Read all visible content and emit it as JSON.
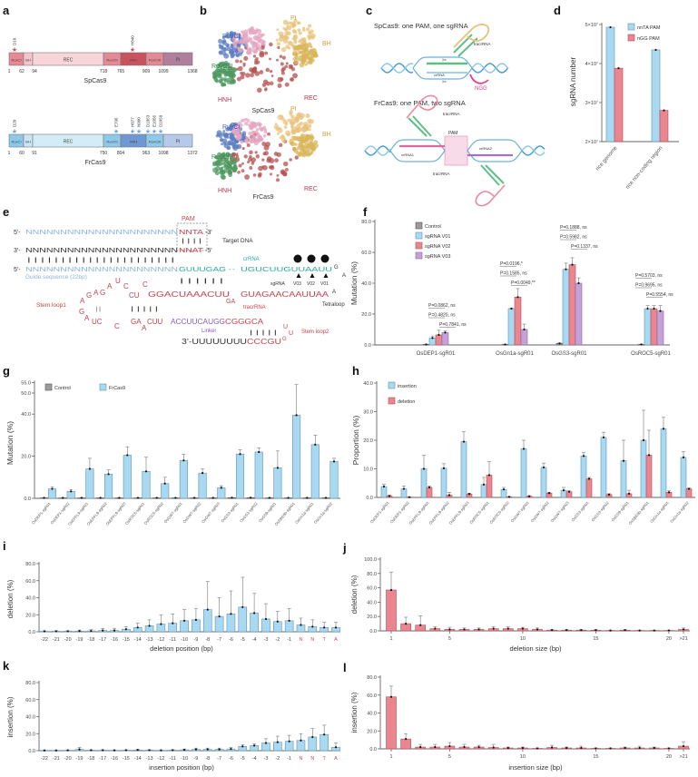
{
  "panel_letters": {
    "a": "a",
    "b": "b",
    "c": "c",
    "d": "d",
    "e": "e",
    "f": "f",
    "g": "g",
    "h": "h",
    "i": "i",
    "j": "j",
    "k": "k",
    "l": "l"
  },
  "colors": {
    "blue": "#a9d9f0",
    "blue_edge": "#5f93b2",
    "red": "#e9868f",
    "red_edge": "#b14f59",
    "purple": "#c4a2d8",
    "purple_edge": "#8d66a6",
    "grey": "#9c9c9c",
    "pam_red": "#d9444f",
    "teal": "#2aa9a0",
    "guide_blue": "#8ab4dc",
    "linker_purple": "#8a5db0"
  },
  "panel_a": {
    "proteins": [
      {
        "name": "SpCas9",
        "domains": [
          {
            "label": "RuvCI",
            "start": 1,
            "end": 62
          },
          {
            "label": "BH",
            "start": 62,
            "end": 94
          },
          {
            "label": "REC",
            "start": 94,
            "end": 718
          },
          {
            "label": "RuvCII",
            "start": 718,
            "end": 765
          },
          {
            "label": "HNH",
            "start": 765,
            "end": 909
          },
          {
            "label": "RuvCIII",
            "start": 909,
            "end": 1099
          },
          {
            "label": "PI",
            "start": 1099,
            "end": 1368
          }
        ],
        "positions": [
          "1",
          "62",
          "94",
          "718",
          "765",
          "909",
          "1099",
          "1368"
        ],
        "mutations": [
          "D10",
          "H840"
        ]
      },
      {
        "name": "FrCas9",
        "domains": [
          {
            "label": "RuvCI",
            "start": 1,
            "end": 60
          },
          {
            "label": "BH",
            "start": 60,
            "end": 91
          },
          {
            "label": "REC",
            "start": 91,
            "end": 750
          },
          {
            "label": "RuvCII",
            "start": 750,
            "end": 804
          },
          {
            "label": "HNH",
            "start": 804,
            "end": 963
          },
          {
            "label": "RuvCIII",
            "start": 963,
            "end": 1098
          },
          {
            "label": "PI",
            "start": 1098,
            "end": 1372
          }
        ],
        "positions": [
          "1",
          "60",
          "91",
          "750",
          "804",
          "963",
          "1098",
          "1372"
        ],
        "mutations": [
          "D20",
          "E796",
          "H877",
          "N900",
          "D1053",
          "E1056",
          "D1059"
        ]
      }
    ]
  },
  "panel_b": {
    "top": {
      "title": "SpCas9",
      "labels": [
        "RuvCI",
        "PI",
        "BH",
        "RuvCIII",
        "HNH",
        "REC"
      ]
    },
    "bottom": {
      "title": "FrCas9",
      "labels": [
        "RuvCI",
        "PI",
        "BH",
        "RuvCIII",
        "HNH",
        "REC"
      ]
    }
  },
  "panel_c": {
    "top_title": "SpCas9: one PAM, one sgRNA",
    "bottom_title": "FrCas9: one PAM, two sgRNA",
    "top_labels": {
      "tracrrna": "tracrRNA",
      "crrna": "crRNA",
      "pam": "NGG"
    },
    "bottom_labels": {
      "tracrrna_top": "tracrRNA",
      "tracrrna_bottom": "tracrRNA",
      "pam": "PAM",
      "crrna1": "crRNA1",
      "crrna2": "crRNA2"
    }
  },
  "panel_e": {
    "pam_label": "PAM",
    "target_dna_label": "Target DNA",
    "top_strand": {
      "prefix": "5'-",
      "seq": "NNNNNNNNNNNNNNNNNNNNNN",
      "pam": "NNTA",
      "suffix": "-3'"
    },
    "pam_pairs": "| | | |",
    "bottom_strand": {
      "prefix": "3'-",
      "seq": "NNNNNNNNNNNNNNNNNNNNNN",
      "pam": "NNAT",
      "suffix": "-5'"
    },
    "guide_pairs": "| | | | | | | | | | | | | | | | | | | | | |",
    "sgrna": {
      "prefix": "5'-",
      "guide": "NNNNNNNNNNNNNNNNNNNNNN",
      "repeat": "GUUUGAG",
      "gap": "- -",
      "anti_repeat": "UGUCUUGUUAAUU",
      "loop_g": "G"
    },
    "guide_label": "Guide sequence (22bp)",
    "crrna_label": "crRNA",
    "repeat_pairs": "| | | | | |",
    "sgrna_label": "sgRNA",
    "variants": [
      "V03",
      "V02",
      "V01"
    ],
    "tetraloop_letters": [
      "A",
      "A"
    ],
    "tetraloop_label": "Tetraloop",
    "tracr_seq_1": "GGACUAAACUU",
    "tracr_bulge": "GA",
    "tracr_seq_2": "GUAGAACAAUUAA",
    "tracrrna_label": "tracrRNA",
    "stem_loop1_label": "Stem loop1",
    "stem_loop1_letters": [
      "A",
      "G",
      "A",
      "G",
      "A",
      "U",
      "C",
      "CU",
      "C"
    ],
    "stem_loop1_pairs": [
      "| |",
      "| |  | | |"
    ],
    "lower_letters": [
      "G",
      "A",
      "UC",
      "C",
      "GA",
      "A",
      "CUU"
    ],
    "linker_seq": "ACCUUCAUGG",
    "lower_seq_2": "CGGGCA",
    "linker_label": "Linker",
    "stem_loop2_letters": [
      "U",
      "U"
    ],
    "stem_loop2_label": "Stem loop2",
    "stem_loop2_pairs": "| | | | |",
    "tail_prefix": "3'-UUUUUUUU",
    "tail_seq": "CCCGU",
    "tail_g": "G"
  },
  "chart_data": [
    {
      "id": "d",
      "type": "bar",
      "ylabel": "sgRNA number",
      "categories": [
        "rice genome",
        "rice non-coding region"
      ],
      "ylim": [
        20000000,
        50000000
      ],
      "ytick_values": [
        20000000,
        30000000,
        40000000,
        50000000
      ],
      "ytick_labels": [
        "2×10⁷",
        "3×10⁷",
        "4×10⁷",
        "5×10⁷"
      ],
      "legend": "top-right",
      "series": [
        {
          "name": "nnTA PAM",
          "color": "blue",
          "values": [
            49300000,
            43500000
          ]
        },
        {
          "name": "nGG PAM",
          "color": "red",
          "values": [
            38800000,
            28000000
          ]
        }
      ]
    },
    {
      "id": "f",
      "type": "bar",
      "ylabel": "Mutation (%)",
      "categories": [
        "OsDEP1-sgR01",
        "OsGn1a-sgR01",
        "OsGS3-sgR01",
        "OsROC5-sgR01"
      ],
      "ylim": [
        0,
        80
      ],
      "ytick_values": [
        0,
        20,
        40,
        60,
        80
      ],
      "ytick_labels": [
        "0.0",
        "20.0",
        "40.0",
        "60.0",
        "80.0"
      ],
      "legend": "top-left",
      "series": [
        {
          "name": "Control",
          "color": "grey",
          "values": [
            0.3,
            0.3,
            1.0,
            0.3
          ],
          "error": [
            0.5,
            0.5,
            1.3,
            0.5
          ]
        },
        {
          "name": "sgRNA V01",
          "color": "blue",
          "values": [
            4.5,
            23.5,
            49,
            23.5
          ],
          "error": [
            5.8,
            24,
            53,
            25.5
          ]
        },
        {
          "name": "sgRNA V02",
          "color": "red",
          "values": [
            6.5,
            31,
            52,
            23.5
          ],
          "error": [
            9.5,
            36.5,
            56.5,
            25.5
          ]
        },
        {
          "name": "sgRNA V03",
          "color": "purple",
          "values": [
            8,
            10,
            40,
            22
          ],
          "error": [
            9,
            13.5,
            43.5,
            25.5
          ]
        }
      ],
      "annotations": [
        [
          "P=0.0862, ns",
          "P=0.4820, ns",
          "P=0.7841, ns"
        ],
        [
          "P=0.0196,*",
          "P=0.1585, ns",
          "P=0.0049,**"
        ],
        [
          "P=0.1888, ns",
          "P=0.5982, ns",
          "P=0.1337, ns"
        ],
        [
          "P=0.5703, ns",
          "P=0.9695, ns",
          "P=0.5554, ns"
        ]
      ]
    },
    {
      "id": "g",
      "type": "bar",
      "ylabel": "Mutation (%)",
      "categories": [
        "OsDEP1-sgR01",
        "OsDEP1-sgR02",
        "OsEPFL9-sgR01",
        "OsEPFL9-sgR02",
        "OsEPFL9-sgR03",
        "OsROC5-sgR01",
        "OsROC5-sgR02",
        "OsGW7-sgR01",
        "OsGW7-sgR02",
        "OsGW7-sgR03",
        "OsGS3-sgR01",
        "OsGS3-sgR02",
        "OsGS9-sgR01",
        "OsSBEIIb-sgR01",
        "OsGn1a-sgR01",
        "OsGn1a-sgR02"
      ],
      "ylim": [
        0,
        55
      ],
      "ytick_values": [
        0,
        20,
        40,
        50,
        55
      ],
      "ytick_labels": [
        "0.0",
        "20.0",
        "40.0",
        "50.0",
        "55.0"
      ],
      "legend": "top",
      "series": [
        {
          "name": "Control",
          "color": "grey",
          "values": [
            0.2,
            0.2,
            0.2,
            0.2,
            0.2,
            0.2,
            0.2,
            0.2,
            0.2,
            0.2,
            0.3,
            0.3,
            0.2,
            0.2,
            0.2,
            0.2
          ],
          "error": [
            0.3,
            0.3,
            0.3,
            0.3,
            0.3,
            0.3,
            0.3,
            0.3,
            0.3,
            0.3,
            0.4,
            0.4,
            0.3,
            0.3,
            0.3,
            0.3
          ]
        },
        {
          "name": "FrCas9",
          "color": "blue",
          "values": [
            4.5,
            3.3,
            14,
            11.5,
            20.5,
            12.8,
            7,
            18,
            12,
            5,
            21,
            22,
            14.5,
            39.5,
            25.5,
            17.5
          ],
          "error": [
            5.5,
            4.2,
            19,
            13.5,
            24.5,
            19.5,
            10,
            21,
            14,
            6,
            23,
            24,
            22.5,
            54,
            30,
            19
          ]
        }
      ]
    },
    {
      "id": "h",
      "type": "bar",
      "ylabel": "Proportion (%)",
      "categories": [
        "OsDEP1-sgR01",
        "OsDEP1-sgR02",
        "OsEPFL9-sgR01",
        "OsEPFL9-sgR02",
        "OsEPFL9-sgR03",
        "OsROC5-sgR01",
        "OsROC5-sgR02",
        "OsGW7-sgR01",
        "OsGW7-sgR02",
        "OsGW7-sgR03",
        "OsGS3-sgR01",
        "OsGS3-sgR02",
        "OsGS9-sgR01",
        "OsSBEIIb-sgR01",
        "OsGn1a-sgR01",
        "OsGn1a-sgR02"
      ],
      "ylim": [
        0,
        40
      ],
      "ytick_values": [
        0,
        10,
        20,
        30,
        40
      ],
      "ytick_labels": [
        "0.0",
        "10.0",
        "20.0",
        "30.0",
        "40.0"
      ],
      "legend": "top-left",
      "series": [
        {
          "name": "insertion",
          "color": "blue",
          "values": [
            3.8,
            3,
            10,
            10.2,
            19.5,
            4.5,
            2.8,
            17,
            10.5,
            2.5,
            14.5,
            21,
            12.8,
            20,
            24,
            14
          ],
          "error": [
            4.6,
            4,
            14.8,
            11.8,
            23,
            7,
            3.5,
            20,
            12,
            3.5,
            15.8,
            22.8,
            20,
            30.5,
            28,
            16
          ]
        },
        {
          "name": "deletion",
          "color": "red",
          "values": [
            0.5,
            0.1,
            3.5,
            0.8,
            1.2,
            7.8,
            0.2,
            0.4,
            1.5,
            2,
            6.5,
            1,
            1.3,
            14.8,
            1.8,
            3
          ],
          "error": [
            0.8,
            0.2,
            4,
            1.8,
            1.5,
            12.5,
            0.3,
            0.6,
            1.8,
            2.3,
            7,
            1.3,
            2.5,
            23.5,
            2.3,
            3.3
          ]
        }
      ]
    },
    {
      "id": "i",
      "type": "bar",
      "ylabel": "deletion (%)",
      "xlabel": "deletion position (bp)",
      "categories": [
        "-22",
        "-21",
        "-20",
        "-19",
        "-18",
        "-17",
        "-16",
        "-15",
        "-14",
        "-13",
        "-12",
        "-11",
        "-10",
        "-9",
        "-8",
        "-7",
        "-6",
        "-5",
        "-4",
        "-3",
        "-2",
        "-1",
        "N",
        "N",
        "T",
        "A"
      ],
      "ylim": [
        0,
        80
      ],
      "ytick_values": [
        0,
        20,
        40,
        60,
        80
      ],
      "ytick_labels": [
        "0.0",
        "20.0",
        "40.0",
        "60.0",
        "80.0"
      ],
      "series": [
        {
          "color": "blue",
          "values": [
            0.5,
            0.6,
            0.6,
            0.8,
            1,
            1.5,
            1.5,
            3,
            5,
            7,
            9,
            10,
            13,
            14,
            26,
            18,
            21,
            29,
            22,
            15,
            12,
            13,
            8,
            6,
            5,
            5
          ],
          "error": [
            1.2,
            1.3,
            1.3,
            2,
            2.5,
            4,
            4,
            6,
            10,
            14,
            20,
            21,
            26,
            27,
            59,
            40,
            48,
            64,
            45,
            33,
            24,
            27,
            16,
            14,
            11,
            11
          ]
        }
      ]
    },
    {
      "id": "j",
      "type": "bar",
      "ylabel": "deletion (%)",
      "xlabel": "deletion size (bp)",
      "x": [
        1,
        2,
        3,
        4,
        5,
        6,
        7,
        8,
        9,
        10,
        11,
        12,
        13,
        14,
        15,
        16,
        17,
        18,
        19,
        20,
        21
      ],
      "xtick_labels": [
        "1",
        "5",
        "10",
        "15",
        "20",
        ">21"
      ],
      "xtick_positions": [
        1,
        5,
        10,
        15,
        20,
        21
      ],
      "ylim": [
        0,
        100
      ],
      "ytick_values": [
        0,
        20,
        40,
        60,
        80,
        100
      ],
      "ytick_labels": [
        "0.0",
        "20.0",
        "40.0",
        "60.0",
        "80.0",
        "100.0"
      ],
      "series": [
        {
          "color": "red",
          "values": [
            57,
            10,
            8,
            3,
            2,
            2,
            2,
            3,
            3,
            3,
            2,
            1,
            1,
            1,
            1,
            0.5,
            1,
            0.5,
            0.5,
            0.5,
            2
          ],
          "error": [
            82,
            19,
            21,
            6,
            5,
            4,
            4,
            6,
            6,
            5,
            4,
            2,
            2,
            2,
            2,
            1,
            2,
            1,
            1,
            1,
            4
          ]
        }
      ]
    },
    {
      "id": "k",
      "type": "bar",
      "ylabel": "insertion (%)",
      "xlabel": "insertion position (bp)",
      "categories": [
        "-22",
        "-21",
        "-20",
        "-19",
        "-18",
        "-17",
        "-16",
        "-15",
        "-14",
        "-13",
        "-12",
        "-11",
        "-10",
        "-9",
        "-8",
        "-7",
        "-6",
        "-5",
        "-4",
        "-3",
        "-2",
        "-1",
        "N",
        "N",
        "T",
        "A"
      ],
      "ylim": [
        0,
        80
      ],
      "ytick_values": [
        0,
        20,
        40,
        60,
        80
      ],
      "ytick_labels": [
        "0.0",
        "20.0",
        "40.0",
        "60.0",
        "80.0"
      ],
      "series": [
        {
          "color": "blue",
          "values": [
            0.3,
            0.3,
            0.4,
            1.5,
            0.5,
            0.5,
            0.4,
            0.5,
            0.8,
            0.6,
            0.4,
            0.6,
            1,
            1.5,
            1.5,
            1.5,
            2,
            5,
            6,
            9,
            10,
            11,
            12,
            16,
            19,
            4
          ],
          "error": [
            0.6,
            0.6,
            0.8,
            4,
            1,
            1,
            0.8,
            1,
            1.5,
            1.2,
            0.8,
            1.2,
            2,
            3,
            3,
            3,
            4,
            7,
            8,
            14,
            17,
            18,
            20,
            26,
            30,
            9
          ]
        }
      ]
    },
    {
      "id": "l",
      "type": "bar",
      "ylabel": "insertion (%)",
      "xlabel": "insertion size (bp)",
      "x": [
        1,
        2,
        3,
        4,
        5,
        6,
        7,
        8,
        9,
        10,
        11,
        12,
        13,
        14,
        15,
        16,
        17,
        18,
        19,
        20,
        21
      ],
      "xtick_labels": [
        "1",
        "5",
        "10",
        "15",
        "20",
        ">21"
      ],
      "xtick_positions": [
        1,
        5,
        10,
        15,
        20,
        21
      ],
      "ylim": [
        0,
        80
      ],
      "ytick_values": [
        0,
        20,
        40,
        60,
        80
      ],
      "ytick_labels": [
        "0.0",
        "20.0",
        "40.0",
        "60.0",
        "80.0"
      ],
      "series": [
        {
          "color": "red",
          "values": [
            58,
            11,
            2,
            2,
            3,
            2,
            2,
            1.5,
            1,
            1,
            0.5,
            1.5,
            1,
            1,
            0.5,
            0.5,
            1,
            1,
            1,
            0.5,
            3
          ],
          "error": [
            70,
            17,
            5,
            5,
            7,
            5,
            4,
            5,
            2,
            2,
            1,
            4,
            2,
            3,
            1,
            1,
            2,
            3,
            2,
            1,
            8
          ]
        }
      ]
    }
  ]
}
